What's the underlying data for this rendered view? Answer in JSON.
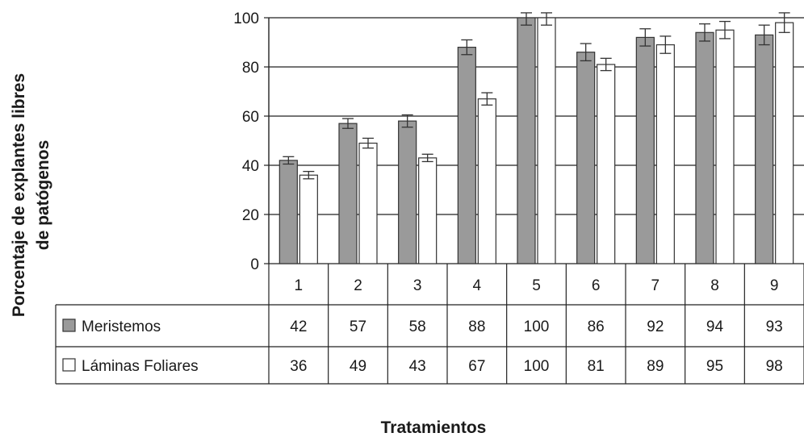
{
  "chart_data": {
    "type": "bar",
    "ylabel": "Porcentaje de explantes libres de patógenos",
    "ylabel_lines": [
      "Porcentaje de explantes libres",
      "de patógenos"
    ],
    "xlabel": "Tratamientos",
    "ylim": [
      0,
      100
    ],
    "yticks": [
      "0",
      "20",
      "40",
      "60",
      "80",
      "100"
    ],
    "grid": true,
    "categories": [
      "1",
      "2",
      "3",
      "4",
      "5",
      "6",
      "7",
      "8",
      "9"
    ],
    "series": [
      {
        "name": "Meristemos",
        "color": "#9a9a9a",
        "values": [
          42,
          57,
          58,
          88,
          100,
          86,
          92,
          94,
          93
        ],
        "errors": [
          1.5,
          2,
          2.5,
          3,
          3,
          3.5,
          3.5,
          3.5,
          4
        ]
      },
      {
        "name": "Láminas Foliares",
        "color": "#ffffff",
        "values": [
          36,
          49,
          43,
          67,
          100,
          81,
          89,
          95,
          98
        ],
        "errors": [
          1.5,
          2,
          1.5,
          2.5,
          3,
          2.5,
          3.5,
          3.5,
          4
        ]
      }
    ],
    "table_values": [
      [
        "42",
        "57",
        "58",
        "88",
        "100",
        "86",
        "92",
        "94",
        "93"
      ],
      [
        "36",
        "49",
        "43",
        "67",
        "100",
        "81",
        "89",
        "95",
        "98"
      ]
    ]
  }
}
